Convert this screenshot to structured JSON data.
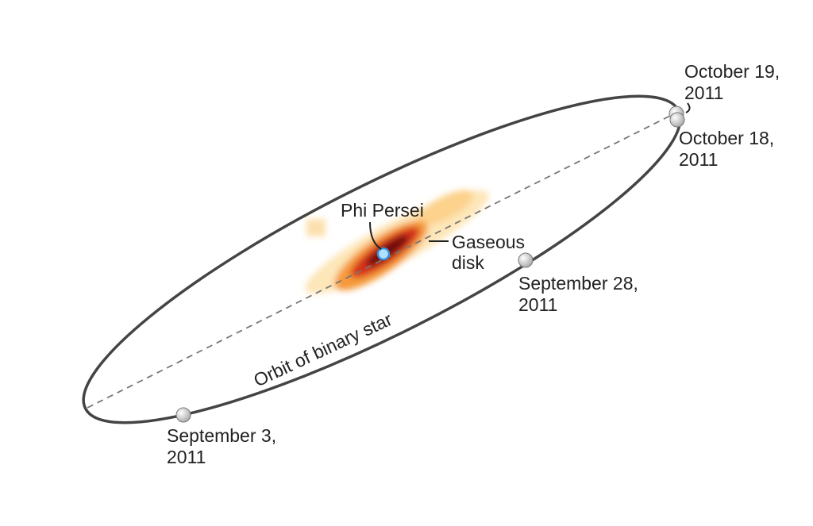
{
  "labels": {
    "oct19": [
      "October 19,",
      "2011"
    ],
    "oct18": [
      "October 18,",
      "2011"
    ],
    "sep28": [
      "September 28,",
      "2011"
    ],
    "sep3": [
      "September 3,",
      "2011"
    ],
    "star": "Phi Persei",
    "disk": [
      "Gaseous",
      "disk"
    ],
    "orbit": "Orbit of binary star"
  }
}
